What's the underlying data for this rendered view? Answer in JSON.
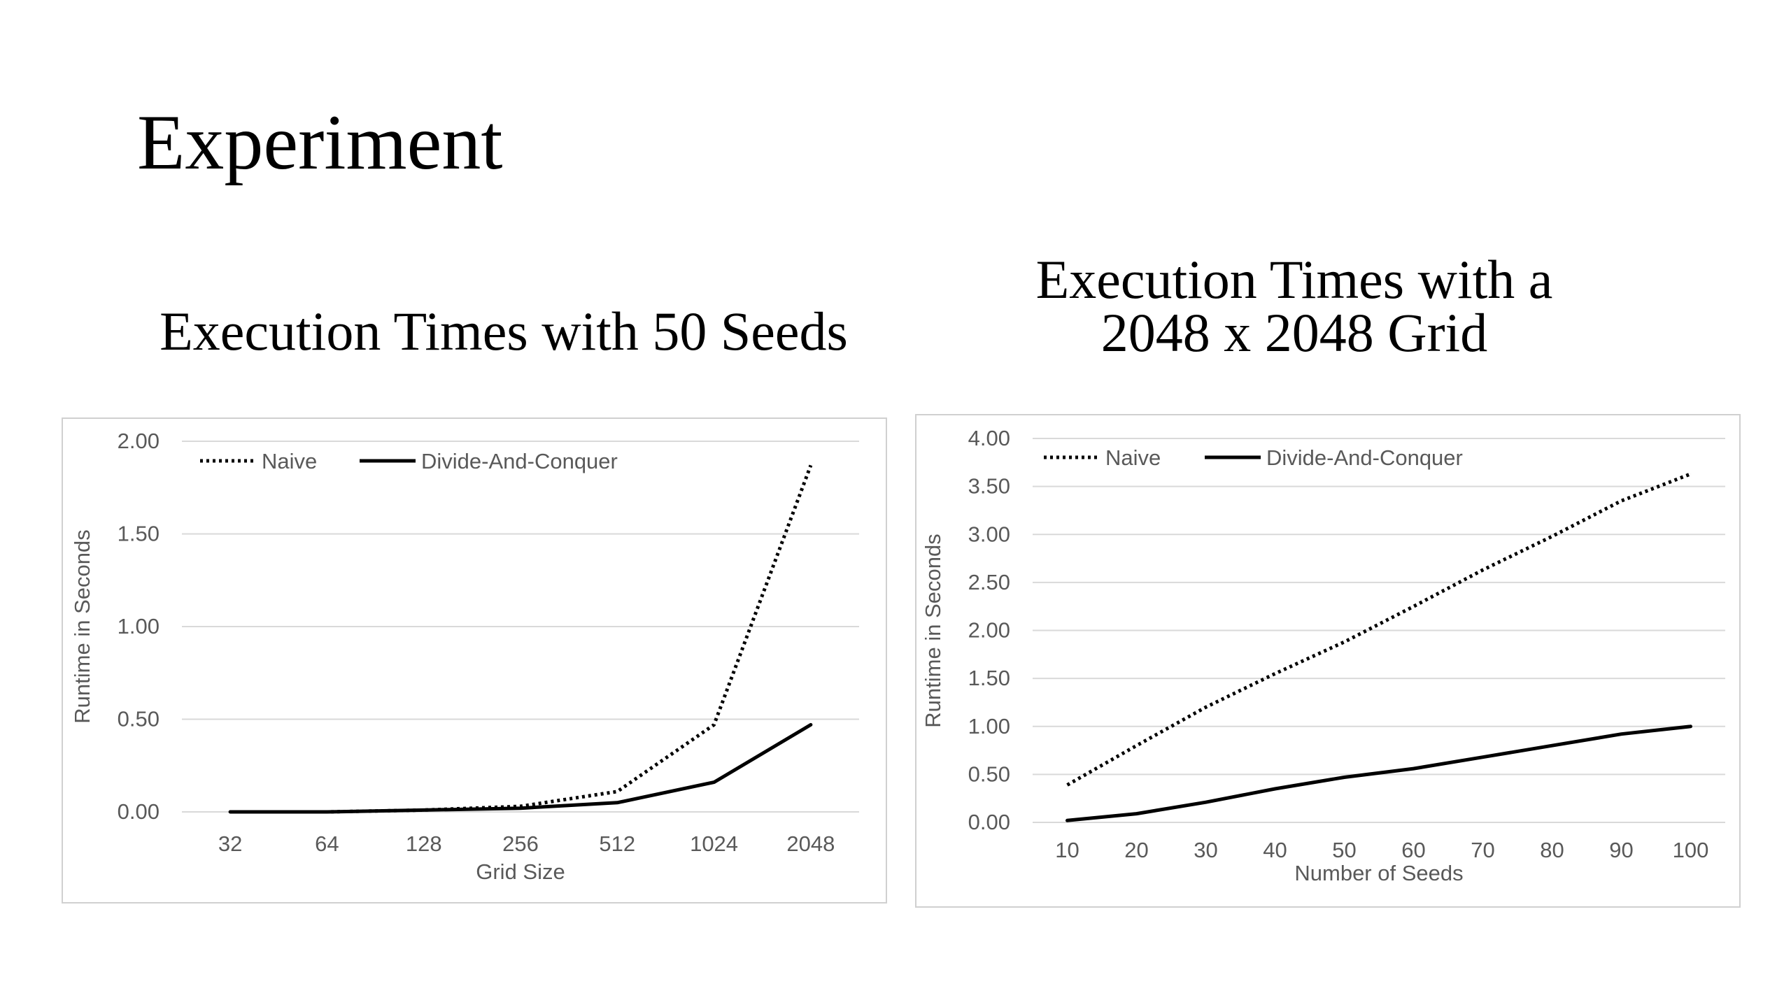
{
  "slide": {
    "title": "Experiment"
  },
  "chart_data": [
    {
      "type": "line",
      "heading_lines": [
        "Execution Times with 50 Seeds"
      ],
      "title": "",
      "xlabel": "Grid Size",
      "ylabel": "Runtime in Seconds",
      "categories": [
        "32",
        "64",
        "128",
        "256",
        "512",
        "1024",
        "2048"
      ],
      "y_ticks": [
        "0.00",
        "0.50",
        "1.00",
        "1.50",
        "2.00"
      ],
      "ylim": [
        0,
        2
      ],
      "grid": true,
      "legend_position": "top-left",
      "series": [
        {
          "name": "Naive",
          "style": "dotted",
          "color": "#000000",
          "values": [
            0.0,
            0.0,
            0.01,
            0.03,
            0.11,
            0.47,
            1.87
          ]
        },
        {
          "name": "Divide-And-Conquer",
          "style": "solid",
          "color": "#000000",
          "values": [
            0.0,
            0.0,
            0.01,
            0.02,
            0.05,
            0.16,
            0.47
          ]
        }
      ]
    },
    {
      "type": "line",
      "heading_lines": [
        "Execution Times with a",
        "2048 x 2048 Grid"
      ],
      "title": "",
      "xlabel": "Number of Seeds",
      "ylabel": "Runtime in Seconds",
      "categories": [
        "10",
        "20",
        "30",
        "40",
        "50",
        "60",
        "70",
        "80",
        "90",
        "100"
      ],
      "y_ticks": [
        "0.00",
        "0.50",
        "1.00",
        "1.50",
        "2.00",
        "2.50",
        "3.00",
        "3.50",
        "4.00"
      ],
      "ylim": [
        0,
        4
      ],
      "grid": true,
      "legend_position": "top-left",
      "series": [
        {
          "name": "Naive",
          "style": "dotted",
          "color": "#000000",
          "values": [
            0.39,
            0.8,
            1.2,
            1.55,
            1.88,
            2.25,
            2.63,
            2.98,
            3.35,
            3.63
          ]
        },
        {
          "name": "Divide-And-Conquer",
          "style": "solid",
          "color": "#000000",
          "values": [
            0.02,
            0.09,
            0.21,
            0.35,
            0.47,
            0.56,
            0.68,
            0.8,
            0.92,
            1.0
          ]
        }
      ]
    }
  ],
  "colors": {
    "gridline": "#d9d9d9",
    "axis_text": "#595959",
    "frame_border": "#d0d0d0"
  }
}
